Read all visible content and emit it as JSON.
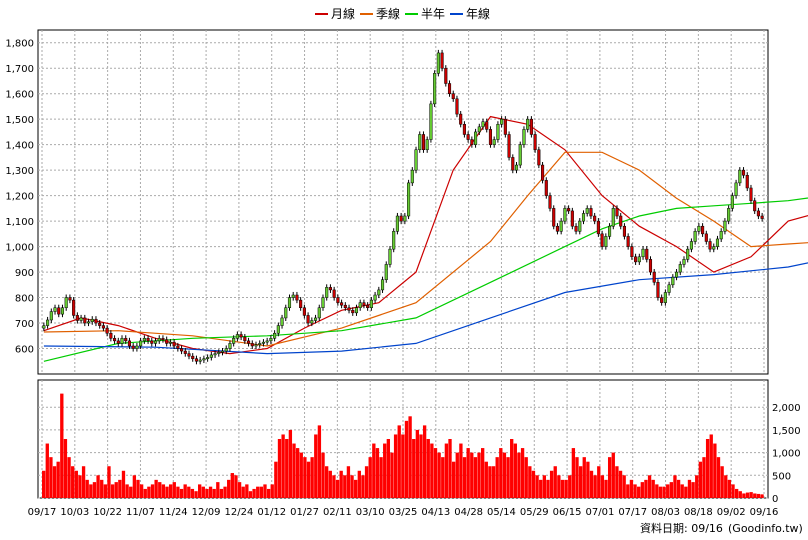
{
  "chart_data": [
    {
      "type": "candlestick",
      "legend": [
        {
          "name": "月線",
          "color": "#cc0000"
        },
        {
          "name": "季線",
          "color": "#e06000"
        },
        {
          "name": "半年",
          "color": "#00cc00"
        },
        {
          "name": "年線",
          "color": "#0044cc"
        }
      ],
      "ylim": [
        500,
        1850
      ],
      "yticks": [
        "600",
        "700",
        "800",
        "900",
        "1,000",
        "1,100",
        "1,200",
        "1,300",
        "1,400",
        "1,500",
        "1,600",
        "1,700",
        "1,800"
      ],
      "ytick_values": [
        600,
        700,
        800,
        900,
        1000,
        1100,
        1200,
        1300,
        1400,
        1500,
        1600,
        1700,
        1800
      ],
      "grid": true,
      "up_color": "#66cc33",
      "down_color": "#cc0000",
      "candles_close": [
        690,
        712,
        745,
        760,
        735,
        760,
        800,
        790,
        730,
        710,
        720,
        700,
        705,
        715,
        700,
        690,
        680,
        660,
        640,
        630,
        620,
        640,
        630,
        610,
        600,
        610,
        630,
        640,
        630,
        620,
        630,
        640,
        635,
        620,
        625,
        610,
        600,
        590,
        580,
        570,
        560,
        550,
        555,
        560,
        565,
        575,
        580,
        585,
        590,
        600,
        620,
        640,
        655,
        645,
        630,
        620,
        610,
        615,
        620,
        625,
        630,
        640,
        660,
        690,
        720,
        760,
        800,
        810,
        790,
        760,
        730,
        700,
        710,
        720,
        760,
        800,
        840,
        830,
        800,
        780,
        770,
        760,
        750,
        740,
        760,
        780,
        770,
        760,
        790,
        810,
        830,
        870,
        930,
        990,
        1060,
        1120,
        1100,
        1120,
        1250,
        1300,
        1380,
        1440,
        1380,
        1420,
        1560,
        1680,
        1760,
        1700,
        1640,
        1600,
        1580,
        1520,
        1480,
        1440,
        1420,
        1400,
        1450,
        1470,
        1490,
        1460,
        1400,
        1420,
        1480,
        1500,
        1440,
        1350,
        1300,
        1320,
        1400,
        1460,
        1500,
        1440,
        1380,
        1320,
        1260,
        1200,
        1150,
        1080,
        1060,
        1100,
        1150,
        1140,
        1080,
        1060,
        1100,
        1130,
        1150,
        1120,
        1100,
        1050,
        1000,
        1040,
        1080,
        1150,
        1120,
        1080,
        1040,
        1000,
        960,
        940,
        960,
        990,
        950,
        900,
        860,
        800,
        780,
        820,
        850,
        880,
        900,
        930,
        950,
        990,
        1020,
        1060,
        1080,
        1050,
        1020,
        990,
        1000,
        1030,
        1060,
        1100,
        1150,
        1200,
        1250,
        1300,
        1280,
        1230,
        1180,
        1140,
        1120,
        1110
      ],
      "moving_averages": {
        "月線": [
          [
            0,
            670
          ],
          [
            10,
            720
          ],
          [
            20,
            690
          ],
          [
            30,
            640
          ],
          [
            40,
            600
          ],
          [
            50,
            580
          ],
          [
            60,
            600
          ],
          [
            70,
            680
          ],
          [
            80,
            750
          ],
          [
            90,
            780
          ],
          [
            100,
            900
          ],
          [
            110,
            1300
          ],
          [
            120,
            1510
          ],
          [
            130,
            1480
          ],
          [
            140,
            1380
          ],
          [
            150,
            1200
          ],
          [
            160,
            1080
          ],
          [
            170,
            1000
          ],
          [
            180,
            900
          ],
          [
            190,
            960
          ],
          [
            200,
            1100
          ],
          [
            210,
            1140
          ]
        ],
        "季線": [
          [
            0,
            665
          ],
          [
            20,
            670
          ],
          [
            40,
            650
          ],
          [
            60,
            610
          ],
          [
            80,
            680
          ],
          [
            100,
            780
          ],
          [
            120,
            1020
          ],
          [
            130,
            1200
          ],
          [
            140,
            1370
          ],
          [
            150,
            1370
          ],
          [
            160,
            1300
          ],
          [
            170,
            1190
          ],
          [
            180,
            1100
          ],
          [
            190,
            1000
          ],
          [
            200,
            1010
          ],
          [
            210,
            1020
          ]
        ],
        "半年": [
          [
            0,
            550
          ],
          [
            20,
            620
          ],
          [
            40,
            640
          ],
          [
            60,
            650
          ],
          [
            80,
            670
          ],
          [
            100,
            720
          ],
          [
            120,
            860
          ],
          [
            140,
            1000
          ],
          [
            150,
            1070
          ],
          [
            160,
            1120
          ],
          [
            170,
            1150
          ],
          [
            180,
            1160
          ],
          [
            190,
            1170
          ],
          [
            200,
            1180
          ],
          [
            210,
            1200
          ]
        ],
        "年線": [
          [
            0,
            610
          ],
          [
            30,
            605
          ],
          [
            60,
            580
          ],
          [
            80,
            590
          ],
          [
            100,
            620
          ],
          [
            120,
            720
          ],
          [
            140,
            820
          ],
          [
            160,
            870
          ],
          [
            180,
            890
          ],
          [
            200,
            920
          ],
          [
            210,
            950
          ]
        ]
      }
    },
    {
      "type": "bar",
      "ylim": [
        0,
        2600
      ],
      "yticks": [
        "0",
        "500",
        "1,000",
        "1,500",
        "2,000"
      ],
      "ytick_values": [
        0,
        500,
        1000,
        1500,
        2000
      ],
      "xticks": [
        "09/17",
        "10/03",
        "10/22",
        "11/07",
        "11/24",
        "12/09",
        "12/24",
        "01/12",
        "01/27",
        "02/11",
        "03/10",
        "03/25",
        "04/13",
        "04/28",
        "05/14",
        "05/29",
        "06/15",
        "07/01",
        "07/17",
        "08/03",
        "08/18",
        "09/02",
        "09/16"
      ],
      "volumes": [
        600,
        1200,
        900,
        700,
        800,
        2300,
        1300,
        900,
        700,
        600,
        500,
        700,
        400,
        300,
        350,
        500,
        400,
        300,
        700,
        300,
        350,
        400,
        600,
        300,
        250,
        500,
        400,
        300,
        200,
        250,
        300,
        400,
        350,
        300,
        250,
        300,
        350,
        250,
        200,
        300,
        250,
        200,
        150,
        300,
        250,
        200,
        250,
        200,
        350,
        200,
        250,
        400,
        550,
        500,
        350,
        250,
        300,
        150,
        200,
        250,
        250,
        300,
        200,
        300,
        800,
        1300,
        1400,
        1300,
        1500,
        1200,
        1100,
        1000,
        900,
        800,
        900,
        1400,
        1600,
        1000,
        700,
        600,
        500,
        400,
        600,
        500,
        700,
        500,
        400,
        600,
        500,
        700,
        900,
        1200,
        1100,
        900,
        1200,
        1300,
        1000,
        1400,
        1600,
        1400,
        1700,
        1800,
        1300,
        1500,
        1400,
        1600,
        1300,
        1200,
        1100,
        1000,
        900,
        1200,
        1300,
        800,
        1000,
        1200,
        900,
        1100,
        1000,
        900,
        1000,
        1100,
        800,
        700,
        700,
        900,
        1100,
        1000,
        900,
        1300,
        1200,
        1000,
        1100,
        900,
        700,
        600,
        500,
        400,
        500,
        400,
        600,
        700,
        500,
        400,
        400,
        500,
        1100,
        900,
        700,
        900,
        800,
        600,
        500,
        700,
        500,
        400,
        900,
        1000,
        700,
        600,
        500,
        300,
        400,
        300,
        250,
        350,
        400,
        500,
        400,
        300,
        250,
        250,
        300,
        350,
        500,
        400,
        300,
        250,
        400,
        350,
        500,
        800,
        900,
        1300,
        1400,
        1200,
        900,
        700,
        500,
        400,
        300,
        200,
        150,
        100,
        120,
        130,
        100,
        90,
        80
      ]
    }
  ],
  "footer": {
    "label": "資料日期: 09/16",
    "source": "(Goodinfo.tw)"
  }
}
